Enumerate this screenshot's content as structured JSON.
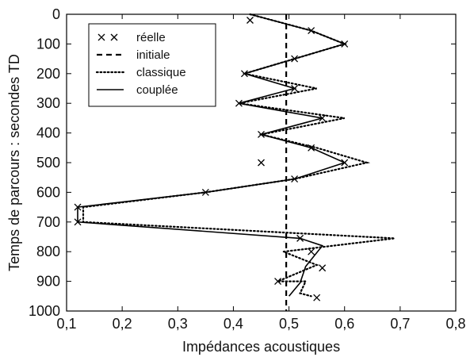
{
  "chart_data": {
    "type": "line",
    "xlabel": "Impédances acoustiques",
    "ylabel": "Temps de parcours : secondes TD",
    "xlim": [
      0.1,
      0.8
    ],
    "ylim": [
      1000,
      0
    ],
    "y_inverted": true,
    "grid": false,
    "legend_position": "top-left",
    "x_ticks": [
      "0,1",
      "0,2",
      "0,3",
      "0,4",
      "0,5",
      "0,6",
      "0,7",
      "0,8"
    ],
    "x_tick_values": [
      0.1,
      0.2,
      0.3,
      0.4,
      0.5,
      0.6,
      0.7,
      0.8
    ],
    "y_ticks": [
      "0",
      "100",
      "200",
      "300",
      "400",
      "500",
      "600",
      "700",
      "800",
      "900",
      "1000"
    ],
    "y_tick_values": [
      0,
      100,
      200,
      300,
      400,
      500,
      600,
      700,
      800,
      900,
      1000
    ],
    "series": [
      {
        "name": "réelle",
        "style": "x-markers",
        "x": [
          0.43,
          0.54,
          0.6,
          0.51,
          0.42,
          0.51,
          0.41,
          0.56,
          0.45,
          0.54,
          0.6,
          0.45,
          0.51,
          0.35,
          0.12,
          0.12,
          0.52,
          0.54,
          0.56,
          0.48,
          0.55
        ],
        "y": [
          20,
          55,
          100,
          150,
          200,
          250,
          300,
          350,
          405,
          450,
          500,
          500,
          555,
          600,
          650,
          700,
          755,
          800,
          855,
          900,
          955
        ]
      },
      {
        "name": "initiale",
        "style": "dashed",
        "x": [
          0.495,
          0.495
        ],
        "y": [
          0,
          1000
        ]
      },
      {
        "name": "classique",
        "style": "dotted",
        "x": [
          0.43,
          0.54,
          0.6,
          0.51,
          0.42,
          0.55,
          0.41,
          0.6,
          0.45,
          0.55,
          0.64,
          0.51,
          0.35,
          0.13,
          0.13,
          0.69,
          0.49,
          0.55,
          0.48,
          0.53,
          0.52,
          0.54
        ],
        "y": [
          0,
          55,
          100,
          150,
          200,
          250,
          300,
          350,
          405,
          450,
          500,
          555,
          600,
          650,
          700,
          755,
          800,
          845,
          900,
          900,
          940,
          950
        ]
      },
      {
        "name": "couplée",
        "style": "solid",
        "x": [
          0.43,
          0.54,
          0.6,
          0.51,
          0.42,
          0.51,
          0.41,
          0.56,
          0.45,
          0.54,
          0.6,
          0.51,
          0.35,
          0.12,
          0.12,
          0.52,
          0.56,
          0.53,
          0.52,
          0.5
        ],
        "y": [
          0,
          55,
          100,
          150,
          200,
          250,
          300,
          350,
          405,
          450,
          500,
          555,
          600,
          650,
          700,
          755,
          780,
          850,
          905,
          950
        ]
      }
    ]
  }
}
